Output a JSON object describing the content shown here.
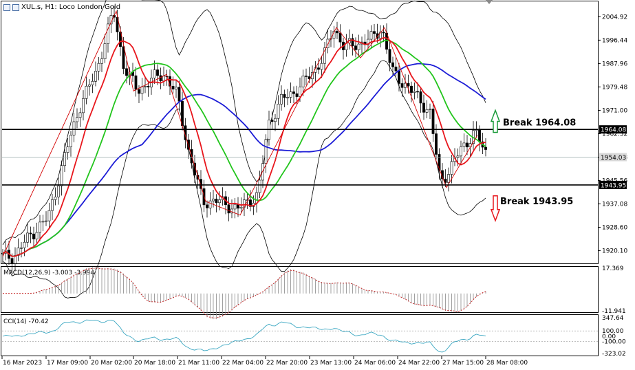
{
  "header": {
    "title": "XUL.s, H1:  Loco London Gold"
  },
  "colors": {
    "ma_fast": "#e8161c",
    "ma_mid": "#22c51c",
    "ma_slow": "#1b1bd6",
    "band": "#000000",
    "zigzag": "#d40000",
    "up_arrow": "#1a9b3a",
    "down_arrow": "#e8161c",
    "macd_signal": "#c01515",
    "cci_line": "#3ba7c2"
  },
  "chart_data": [
    {
      "type": "line",
      "name": "price",
      "x": [
        "16 Mar 2023",
        "17 Mar 09:00",
        "20 Mar 02:00",
        "20 Mar 18:00",
        "21 Mar 11:00",
        "22 Mar 04:00",
        "22 Mar 20:00",
        "23 Mar 13:00",
        "24 Mar 06:00",
        "24 Mar 22:00",
        "27 Mar 15:00",
        "28 Mar 08:00"
      ],
      "series": [
        {
          "values": [
            1928,
            1960,
            2007,
            1983,
            1944,
            1938,
            1980,
            2001,
            1999,
            1975,
            1950,
            1956
          ]
        }
      ],
      "ylim": [
        1915,
        2010
      ],
      "yticks": [
        1920.1,
        1928.6,
        1937.08,
        1945.56,
        1954.03,
        1962.52,
        1971.0,
        1979.48,
        1987.96,
        1996.44,
        2004.92
      ],
      "ytick_labels": [
        "1920.10",
        "1928.60",
        "1937.08",
        "1945.56",
        "1954.03",
        "1962.52",
        "1971.00",
        "1979.48",
        "1987.96",
        "1996.44",
        "2004.92"
      ],
      "price_tags": [
        "1964.08",
        "1954.03",
        "1943.95"
      ],
      "levels": [
        1964.08,
        1943.95
      ],
      "annotations": [
        "Break 1964.08",
        "Break 1943.95"
      ]
    },
    {
      "type": "bar",
      "name": "macd",
      "title": "MACD(12,26,9) -3.003 -3.994",
      "ylim": [
        -11.941,
        17.369
      ],
      "ytick_labels": [
        "17.369",
        "-11.941"
      ]
    },
    {
      "type": "line",
      "name": "cci",
      "title": "CCI(14) -70.42",
      "ylim": [
        -323.02,
        347.64
      ],
      "ytick_labels": [
        "347.64",
        "100.00",
        "0.00",
        "-100.00",
        "-323.02"
      ]
    }
  ]
}
